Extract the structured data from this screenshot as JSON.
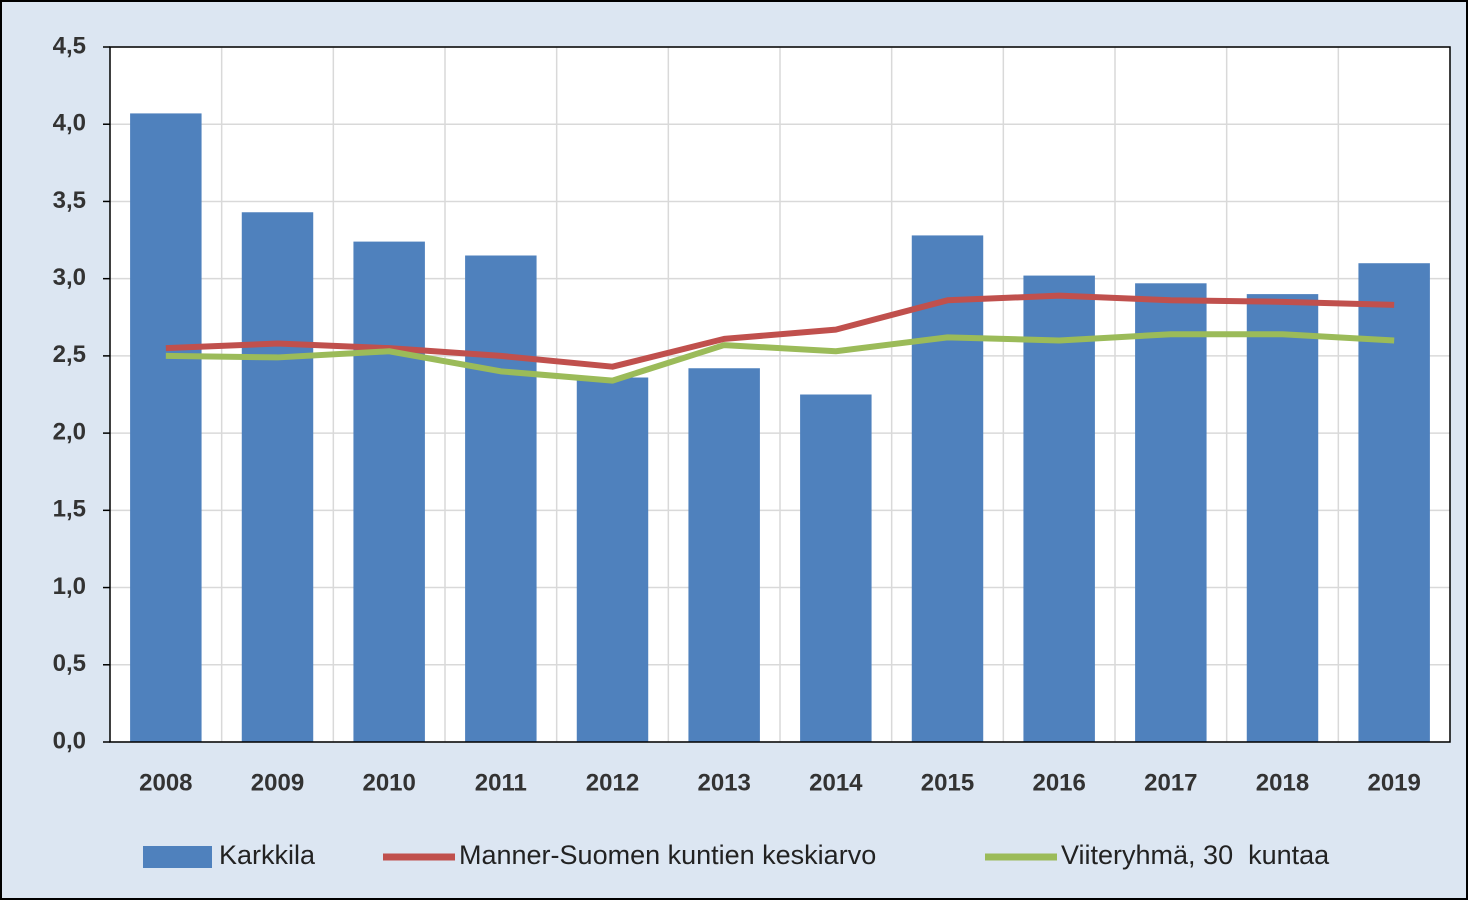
{
  "chart_data": {
    "type": "bar",
    "categories": [
      "2008",
      "2009",
      "2010",
      "2011",
      "2012",
      "2013",
      "2014",
      "2015",
      "2016",
      "2017",
      "2018",
      "2019"
    ],
    "series": [
      {
        "name": "Karkkila",
        "type": "bar",
        "color": "#4f81bd",
        "values": [
          4.07,
          3.43,
          3.24,
          3.15,
          2.36,
          2.42,
          2.25,
          3.28,
          3.02,
          2.97,
          2.9,
          3.1
        ]
      },
      {
        "name": "Manner-Suomen kuntien keskiarvo",
        "type": "line",
        "color": "#c0504d",
        "values": [
          2.55,
          2.58,
          2.55,
          2.5,
          2.43,
          2.61,
          2.67,
          2.86,
          2.89,
          2.86,
          2.85,
          2.83
        ]
      },
      {
        "name": "Viiteryhmä, 30  kuntaa",
        "type": "line",
        "color": "#9bbb59",
        "values": [
          2.5,
          2.49,
          2.53,
          2.4,
          2.34,
          2.57,
          2.53,
          2.62,
          2.6,
          2.64,
          2.64,
          2.6
        ]
      }
    ],
    "ylim": [
      0,
      4.5
    ],
    "yticks": [
      {
        "value": 0,
        "label": "0,0"
      },
      {
        "value": 0.5,
        "label": "0,5"
      },
      {
        "value": 1,
        "label": "1,0"
      },
      {
        "value": 1.5,
        "label": "1,5"
      },
      {
        "value": 2,
        "label": "2,0"
      },
      {
        "value": 2.5,
        "label": "2,5"
      },
      {
        "value": 3,
        "label": "3,0"
      },
      {
        "value": 3.5,
        "label": "3,5"
      },
      {
        "value": 4,
        "label": "4,0"
      },
      {
        "value": 4.5,
        "label": "4,5"
      }
    ],
    "grid": true,
    "legend": "bottom"
  }
}
